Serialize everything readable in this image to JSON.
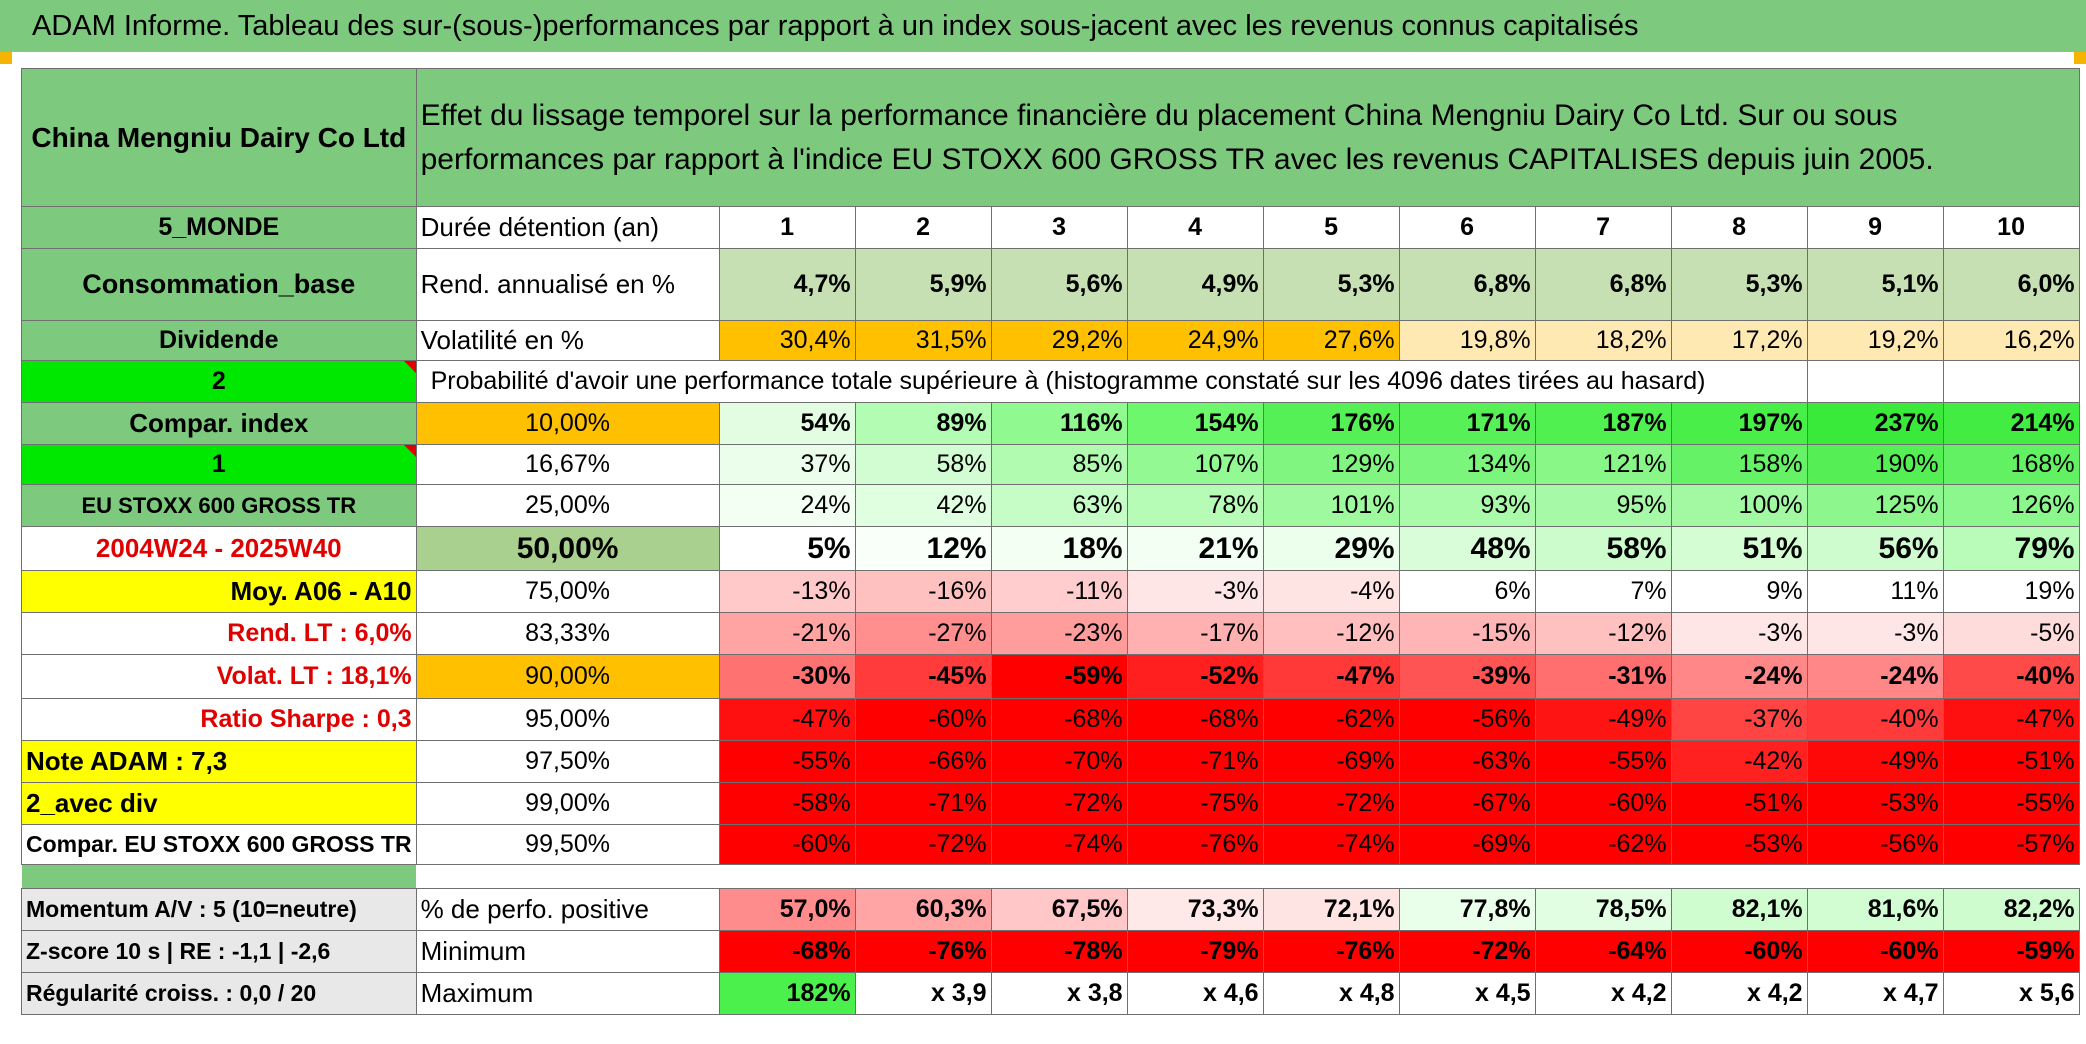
{
  "title": "ADAM Informe. Tableau des sur-(sous-)performances par rapport à un index sous-jacent avec les revenus connus capitalisés",
  "header": {
    "name": "China Mengniu Dairy Co Ltd",
    "description": "Effet du lissage temporel sur la performance financière du placement China Mengniu Dairy Co Ltd. Sur ou sous performances par rapport à l'indice EU STOXX 600 GROSS TR avec les revenus CAPITALISES depuis juin 2005."
  },
  "left_labels": {
    "region": "5_MONDE",
    "sector": "Consommation_base",
    "type": "Dividende",
    "choice": "2",
    "compar_index": "Compar. index",
    "choice2": "1",
    "index_name": "EU STOXX 600 GROSS TR",
    "period": "2004W24 - 2025W40",
    "moy": "Moy. A06 - A10",
    "rend_lt": "Rend. LT :   6,0%",
    "volat_lt": "Volat. LT :   18,1%",
    "sharpe": "Ratio Sharpe :    0,3",
    "note": "Note ADAM : 7,3",
    "avec_div": "2_avec div",
    "compar": "Compar. EU STOXX 600 GROSS TR",
    "momentum": "Momentum A/V : 5 (10=neutre)",
    "zscore": "Z-score 10 s | RE : -1,1 | -2,6",
    "regularite": "Régularité croiss. : 0,0 / 20"
  },
  "years_label": "Durée détention (an)",
  "years": [
    "1",
    "2",
    "3",
    "4",
    "5",
    "6",
    "7",
    "8",
    "9",
    "10"
  ],
  "rend": {
    "label": "Rend. annualisé en %",
    "values": [
      "4,7%",
      "5,9%",
      "5,6%",
      "4,9%",
      "5,3%",
      "6,8%",
      "6,8%",
      "5,3%",
      "5,1%",
      "6,0%"
    ]
  },
  "volat": {
    "label": "Volatilité en %",
    "values": [
      "30,4%",
      "31,5%",
      "29,2%",
      "24,9%",
      "27,6%",
      "19,8%",
      "18,2%",
      "17,2%",
      "19,2%",
      "16,2%"
    ]
  },
  "prob_label": "Probabilité d'avoir une performance totale supérieure à (histogramme constaté sur les 4096 dates tirées au hasard)",
  "prob_rows": [
    {
      "level": "10,00%",
      "values": [
        "54%",
        "89%",
        "116%",
        "154%",
        "176%",
        "171%",
        "187%",
        "197%",
        "237%",
        "214%"
      ]
    },
    {
      "level": "16,67%",
      "values": [
        "37%",
        "58%",
        "85%",
        "107%",
        "129%",
        "134%",
        "121%",
        "158%",
        "190%",
        "168%"
      ]
    },
    {
      "level": "25,00%",
      "values": [
        "24%",
        "42%",
        "63%",
        "78%",
        "101%",
        "93%",
        "95%",
        "100%",
        "125%",
        "126%"
      ]
    },
    {
      "level": "50,00%",
      "values": [
        "5%",
        "12%",
        "18%",
        "21%",
        "29%",
        "48%",
        "58%",
        "51%",
        "56%",
        "79%"
      ]
    },
    {
      "level": "75,00%",
      "values": [
        "-13%",
        "-16%",
        "-11%",
        "-3%",
        "-4%",
        "6%",
        "7%",
        "9%",
        "11%",
        "19%"
      ]
    },
    {
      "level": "83,33%",
      "values": [
        "-21%",
        "-27%",
        "-23%",
        "-17%",
        "-12%",
        "-15%",
        "-12%",
        "-3%",
        "-3%",
        "-5%"
      ]
    },
    {
      "level": "90,00%",
      "values": [
        "-30%",
        "-45%",
        "-59%",
        "-52%",
        "-47%",
        "-39%",
        "-31%",
        "-24%",
        "-24%",
        "-40%"
      ]
    },
    {
      "level": "95,00%",
      "values": [
        "-47%",
        "-60%",
        "-68%",
        "-68%",
        "-62%",
        "-56%",
        "-49%",
        "-37%",
        "-40%",
        "-47%"
      ]
    },
    {
      "level": "97,50%",
      "values": [
        "-55%",
        "-66%",
        "-70%",
        "-71%",
        "-69%",
        "-63%",
        "-55%",
        "-42%",
        "-49%",
        "-51%"
      ]
    },
    {
      "level": "99,00%",
      "values": [
        "-58%",
        "-71%",
        "-72%",
        "-75%",
        "-72%",
        "-67%",
        "-60%",
        "-51%",
        "-53%",
        "-55%"
      ]
    },
    {
      "level": "99,50%",
      "values": [
        "-60%",
        "-72%",
        "-74%",
        "-76%",
        "-74%",
        "-69%",
        "-62%",
        "-53%",
        "-56%",
        "-57%"
      ]
    }
  ],
  "positive": {
    "label": "% de perfo. positive",
    "values": [
      "57,0%",
      "60,3%",
      "67,5%",
      "73,3%",
      "72,1%",
      "77,8%",
      "78,5%",
      "82,1%",
      "81,6%",
      "82,2%"
    ]
  },
  "minimum": {
    "label": "Minimum",
    "values": [
      "-68%",
      "-76%",
      "-78%",
      "-79%",
      "-76%",
      "-72%",
      "-64%",
      "-60%",
      "-60%",
      "-59%"
    ]
  },
  "maximum": {
    "label": "Maximum",
    "values": [
      "182%",
      "x 3,9",
      "x 3,8",
      "x 4,6",
      "x 4,8",
      "x 4,5",
      "x 4,2",
      "x 4,2",
      "x 4,7",
      "x 5,6"
    ]
  },
  "colors": {
    "header_green": "#7dc97d",
    "bright_green": "#00e800",
    "orange": "#ffc000",
    "yellow": "#ffff00",
    "red_text": "#e00000",
    "rend_bg": [
      "#c6e0b4",
      "#c6e0b4",
      "#c6e0b4",
      "#c6e0b4",
      "#c6e0b4",
      "#c6e0b4",
      "#c6e0b4",
      "#c6e0b4",
      "#c6e0b4",
      "#c6e0b4"
    ],
    "volat_bg": [
      "#ffc000",
      "#ffc000",
      "#ffc000",
      "#ffc000",
      "#ffc000",
      "#ffe9b3",
      "#ffe9b3",
      "#ffe9b3",
      "#ffe9b3",
      "#ffe9b3"
    ],
    "prob_bg": [
      [
        "#e2fde2",
        "#b3fcb3",
        "#90fa90",
        "#6cf76c",
        "#55f055",
        "#57f157",
        "#4ff04f",
        "#49ee49",
        "#3aea3a",
        "#42ec42"
      ],
      [
        "#ebfeeb",
        "#d2fdd2",
        "#b0fbb0",
        "#93f993",
        "#80f680",
        "#7bf57b",
        "#88f788",
        "#66f266",
        "#55ef55",
        "#62f162"
      ],
      [
        "#f2fff2",
        "#e0fee0",
        "#c6fcc6",
        "#b6fbb6",
        "#9ff99f",
        "#a9faa9",
        "#a6f9a6",
        "#a2f9a2",
        "#8df78d",
        "#8cf78c"
      ],
      [
        "#ffffff",
        "#f9fff9",
        "#f4fff4",
        "#f2fff2",
        "#ecfeec",
        "#d8fdd8",
        "#ccfccc",
        "#d4fdd4",
        "#cffccf",
        "#b9fbb9"
      ],
      [
        "#ffc9c9",
        "#ffc0c0",
        "#ffcdcd",
        "#ffe6e6",
        "#ffe4e4",
        "#ffffff",
        "#ffffff",
        "#ffffff",
        "#ffffff",
        "#ffffff"
      ],
      [
        "#ffa3a3",
        "#ff8e8e",
        "#ff9c9c",
        "#ffb0b0",
        "#ffbfbf",
        "#ffb5b5",
        "#ffc0c0",
        "#ffe6e6",
        "#ffe6e6",
        "#ffdcdc"
      ],
      [
        "#ff7272",
        "#ff3b3b",
        "#ff0000",
        "#ff1f1f",
        "#ff3838",
        "#ff5454",
        "#ff6f6f",
        "#ff8787",
        "#ff8787",
        "#ff4a4a"
      ],
      [
        "#ff1010",
        "#ff0000",
        "#ff0000",
        "#ff0000",
        "#ff0000",
        "#ff0000",
        "#ff1414",
        "#ff4444",
        "#ff3a3a",
        "#ff1010"
      ],
      [
        "#ff0000",
        "#ff0000",
        "#ff0000",
        "#ff0000",
        "#ff0000",
        "#ff0000",
        "#ff0000",
        "#ff2020",
        "#ff0808",
        "#ff0000"
      ],
      [
        "#ff0000",
        "#ff0000",
        "#ff0000",
        "#ff0000",
        "#ff0000",
        "#ff0000",
        "#ff0000",
        "#ff0000",
        "#ff0000",
        "#ff0000"
      ],
      [
        "#ff0000",
        "#ff0000",
        "#ff0000",
        "#ff0000",
        "#ff0000",
        "#ff0000",
        "#ff0000",
        "#ff0000",
        "#ff0000",
        "#ff0000"
      ]
    ],
    "positive_bg": [
      "#ff8c8c",
      "#ffa5a5",
      "#ffc7c7",
      "#ffe8e8",
      "#ffe4e4",
      "#eaffea",
      "#e2fee2",
      "#d0fdd0",
      "#d2fdd2",
      "#cffccf"
    ],
    "minimum_bg": [
      "#ff0000",
      "#ff0000",
      "#ff0000",
      "#ff0000",
      "#ff0000",
      "#ff0000",
      "#ff0000",
      "#ff0000",
      "#ff0000",
      "#ff0000"
    ],
    "maximum_bg": [
      "#4cf04c",
      "#ffffff",
      "#ffffff",
      "#ffffff",
      "#ffffff",
      "#ffffff",
      "#ffffff",
      "#ffffff",
      "#ffffff",
      "#ffffff"
    ]
  }
}
